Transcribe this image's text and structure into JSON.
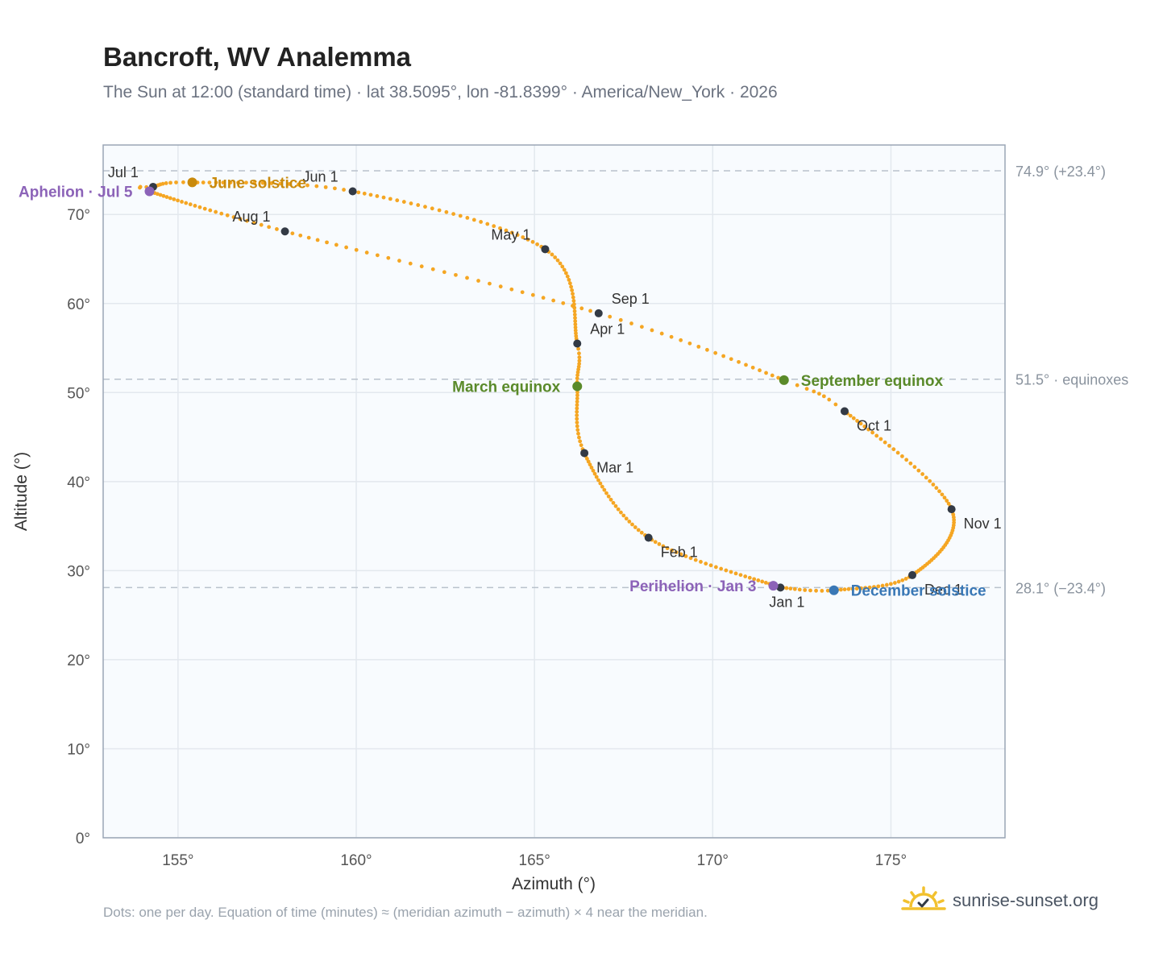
{
  "header": {
    "title": "Bancroft, WV Analemma",
    "subtitle": "The Sun at 12:00 (standard time) · lat 38.5095°, lon -81.8399° · America/New_York · 2026"
  },
  "footer": {
    "note": "Dots: one per day. Equation of time (minutes) ≈ (meridian azimuth − azimuth) × 4 near the meridian.",
    "brand": "sunrise-sunset.org",
    "brand_icon": "sun-icon"
  },
  "colors": {
    "curve": "#f5a623",
    "month_marker": "#333a45",
    "equinox": "#5a8a2a",
    "june_solstice": "#c98a0c",
    "december_solstice": "#3a78b6",
    "apsis": "#8c63b8"
  },
  "chart_data": {
    "type": "scatter",
    "title": "Bancroft, WV Analemma",
    "xlabel": "Azimuth (°)",
    "ylabel": "Altitude (°)",
    "xlim": [
      152.9,
      178.2
    ],
    "ylim": [
      0,
      77.8
    ],
    "grid": true,
    "x_ticks": [
      155,
      160,
      165,
      170,
      175
    ],
    "x_tick_labels": [
      "155°",
      "160°",
      "165°",
      "170°",
      "175°"
    ],
    "y_ticks": [
      0,
      10,
      20,
      30,
      40,
      50,
      60,
      70
    ],
    "y_tick_labels": [
      "0°",
      "10°",
      "20°",
      "30°",
      "40°",
      "50°",
      "60°",
      "70°"
    ],
    "reference_lines": [
      {
        "y": 74.9,
        "label": "74.9° (+23.4°)"
      },
      {
        "y": 51.5,
        "label": "51.5° · equinoxes"
      },
      {
        "y": 28.1,
        "label": "28.1° (−23.4°)"
      }
    ],
    "path_knots": [
      {
        "day": 1,
        "az": 171.9,
        "alt": 28.1
      },
      {
        "day": 32,
        "az": 168.2,
        "alt": 33.7
      },
      {
        "day": 60,
        "az": 166.4,
        "alt": 43.2
      },
      {
        "day": 79,
        "az": 166.2,
        "alt": 50.7
      },
      {
        "day": 91,
        "az": 166.2,
        "alt": 55.5
      },
      {
        "day": 121,
        "az": 165.3,
        "alt": 66.1
      },
      {
        "day": 152,
        "az": 159.9,
        "alt": 72.6
      },
      {
        "day": 172,
        "az": 155.4,
        "alt": 73.6
      },
      {
        "day": 182,
        "az": 154.3,
        "alt": 73.1
      },
      {
        "day": 186,
        "az": 154.2,
        "alt": 72.6
      },
      {
        "day": 213,
        "az": 158.0,
        "alt": 68.1
      },
      {
        "day": 244,
        "az": 166.8,
        "alt": 58.9
      },
      {
        "day": 266,
        "az": 172.0,
        "alt": 51.4
      },
      {
        "day": 274,
        "az": 173.7,
        "alt": 47.9
      },
      {
        "day": 305,
        "az": 176.7,
        "alt": 36.9
      },
      {
        "day": 335,
        "az": 175.6,
        "alt": 29.5
      },
      {
        "day": 355,
        "az": 173.4,
        "alt": 27.8
      },
      {
        "day": 366,
        "az": 171.9,
        "alt": 28.1
      }
    ],
    "month_markers": [
      {
        "label": "Jan 1",
        "az": 171.9,
        "alt": 28.1,
        "pos": "below"
      },
      {
        "label": "Feb 1",
        "az": 168.2,
        "alt": 33.7,
        "pos": "below-right"
      },
      {
        "label": "Mar 1",
        "az": 166.4,
        "alt": 43.2,
        "pos": "below-right"
      },
      {
        "label": "Apr 1",
        "az": 166.2,
        "alt": 55.5,
        "pos": "above-right"
      },
      {
        "label": "May 1",
        "az": 165.3,
        "alt": 66.1,
        "pos": "above-left"
      },
      {
        "label": "Jun 1",
        "az": 159.9,
        "alt": 72.6,
        "pos": "above-left"
      },
      {
        "label": "Jul 1",
        "az": 154.3,
        "alt": 73.1,
        "pos": "above-left"
      },
      {
        "label": "Aug 1",
        "az": 158.0,
        "alt": 68.1,
        "pos": "above-left"
      },
      {
        "label": "Sep 1",
        "az": 166.8,
        "alt": 58.9,
        "pos": "above-right"
      },
      {
        "label": "Oct 1",
        "az": 173.7,
        "alt": 47.9,
        "pos": "below-right"
      },
      {
        "label": "Nov 1",
        "az": 176.7,
        "alt": 36.9,
        "pos": "below-right"
      },
      {
        "label": "Dec 1",
        "az": 175.6,
        "alt": 29.5,
        "pos": "below-right"
      }
    ],
    "events": [
      {
        "label": "June solstice",
        "az": 155.4,
        "alt": 73.6,
        "color": "#c98a0c",
        "pos": "right"
      },
      {
        "label": "Aphelion · Jul 5",
        "az": 154.2,
        "alt": 72.6,
        "color": "#8c63b8",
        "pos": "left"
      },
      {
        "label": "March equinox",
        "az": 166.2,
        "alt": 50.7,
        "color": "#5a8a2a",
        "pos": "left"
      },
      {
        "label": "September equinox",
        "az": 172.0,
        "alt": 51.4,
        "color": "#5a8a2a",
        "pos": "right"
      },
      {
        "label": "Perihelion · Jan 3",
        "az": 171.7,
        "alt": 28.3,
        "color": "#8c63b8",
        "pos": "left"
      },
      {
        "label": "December solstice",
        "az": 173.4,
        "alt": 27.8,
        "color": "#3a78b6",
        "pos": "right"
      }
    ]
  }
}
